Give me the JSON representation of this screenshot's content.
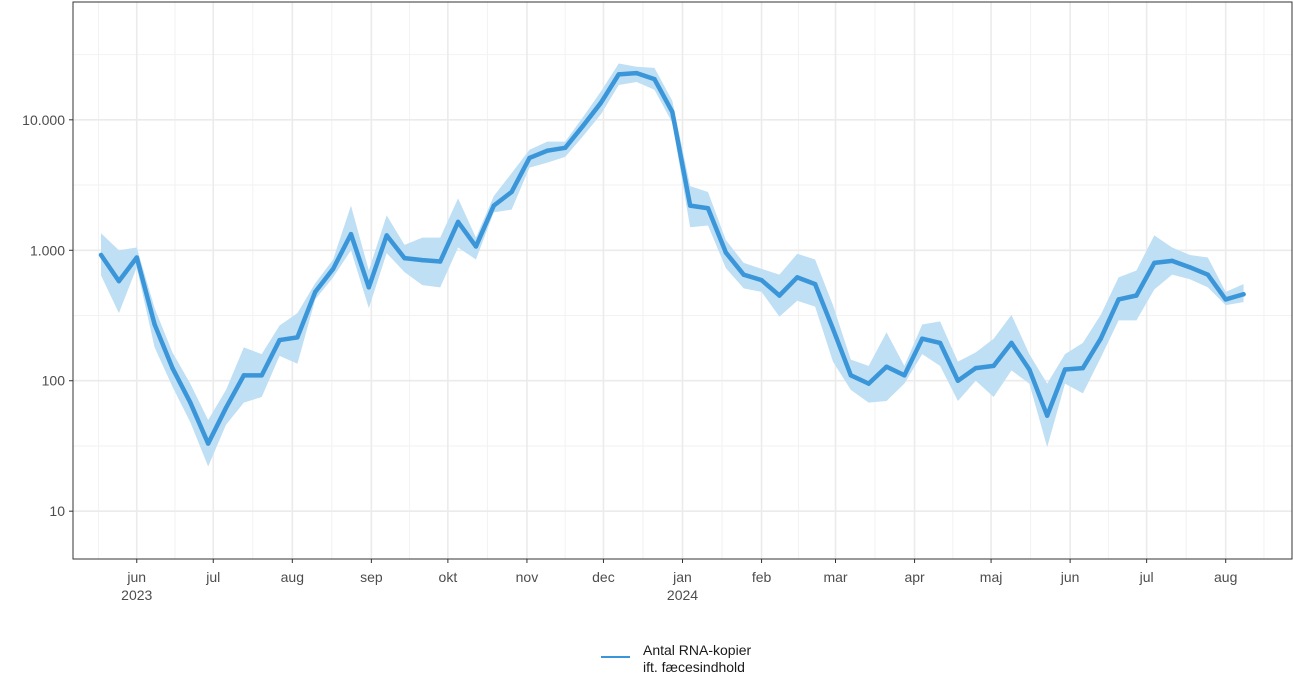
{
  "chart_data": {
    "type": "line",
    "y_scale": "log",
    "ylim": [
      4.3,
      80000
    ],
    "xlim": [
      "2023-05-07",
      "2024-08-27"
    ],
    "grid": true,
    "legend_position": "bottom",
    "y_ticks": [
      {
        "value": 10,
        "label": "10"
      },
      {
        "value": 100,
        "label": "100"
      },
      {
        "value": 1000,
        "label": "1.000"
      },
      {
        "value": 10000,
        "label": "10.000"
      }
    ],
    "x_ticks": [
      {
        "date": "2023-06-01",
        "label": "jun",
        "year": "2023"
      },
      {
        "date": "2023-07-01",
        "label": "jul",
        "year": ""
      },
      {
        "date": "2023-08-01",
        "label": "aug",
        "year": ""
      },
      {
        "date": "2023-09-01",
        "label": "sep",
        "year": ""
      },
      {
        "date": "2023-10-01",
        "label": "okt",
        "year": ""
      },
      {
        "date": "2023-11-01",
        "label": "nov",
        "year": ""
      },
      {
        "date": "2023-12-01",
        "label": "dec",
        "year": ""
      },
      {
        "date": "2024-01-01",
        "label": "jan",
        "year": "2024"
      },
      {
        "date": "2024-02-01",
        "label": "feb",
        "year": ""
      },
      {
        "date": "2024-03-01",
        "label": "mar",
        "year": ""
      },
      {
        "date": "2024-04-01",
        "label": "apr",
        "year": ""
      },
      {
        "date": "2024-05-01",
        "label": "maj",
        "year": ""
      },
      {
        "date": "2024-06-01",
        "label": "jun",
        "year": ""
      },
      {
        "date": "2024-07-01",
        "label": "jul",
        "year": ""
      },
      {
        "date": "2024-08-01",
        "label": "aug",
        "year": ""
      }
    ],
    "legend": {
      "line1": "Antal RNA-kopier",
      "line2": "ift. fæcesindhold"
    },
    "series": [
      {
        "name": "Antal RNA-kopier ift. fæcesindhold",
        "color": "#3a96d8",
        "band_color": "#bfdff4",
        "points": [
          {
            "x": "2023-05-18",
            "y": 920,
            "lo": 640,
            "hi": 1350
          },
          {
            "x": "2023-05-25",
            "y": 580,
            "lo": 330,
            "hi": 1000
          },
          {
            "x": "2023-06-01",
            "y": 880,
            "lo": 740,
            "hi": 1050
          },
          {
            "x": "2023-06-08",
            "y": 270,
            "lo": 180,
            "hi": 360
          },
          {
            "x": "2023-06-15",
            "y": 125,
            "lo": 90,
            "hi": 165
          },
          {
            "x": "2023-06-22",
            "y": 68,
            "lo": 48,
            "hi": 95
          },
          {
            "x": "2023-06-29",
            "y": 33,
            "lo": 22,
            "hi": 50
          },
          {
            "x": "2023-07-06",
            "y": 62,
            "lo": 46,
            "hi": 85
          },
          {
            "x": "2023-07-13",
            "y": 110,
            "lo": 68,
            "hi": 180
          },
          {
            "x": "2023-07-20",
            "y": 110,
            "lo": 75,
            "hi": 160
          },
          {
            "x": "2023-07-27",
            "y": 205,
            "lo": 155,
            "hi": 265
          },
          {
            "x": "2023-08-03",
            "y": 215,
            "lo": 135,
            "hi": 330
          },
          {
            "x": "2023-08-10",
            "y": 480,
            "lo": 420,
            "hi": 560
          },
          {
            "x": "2023-08-17",
            "y": 720,
            "lo": 620,
            "hi": 850
          },
          {
            "x": "2023-08-24",
            "y": 1330,
            "lo": 1000,
            "hi": 2200
          },
          {
            "x": "2023-08-31",
            "y": 520,
            "lo": 360,
            "hi": 700
          },
          {
            "x": "2023-09-07",
            "y": 1300,
            "lo": 950,
            "hi": 1850
          },
          {
            "x": "2023-09-14",
            "y": 870,
            "lo": 680,
            "hi": 1100
          },
          {
            "x": "2023-09-21",
            "y": 840,
            "lo": 540,
            "hi": 1250
          },
          {
            "x": "2023-09-28",
            "y": 820,
            "lo": 520,
            "hi": 1250
          },
          {
            "x": "2023-10-05",
            "y": 1650,
            "lo": 1050,
            "hi": 2500
          },
          {
            "x": "2023-10-12",
            "y": 1070,
            "lo": 850,
            "hi": 1250
          },
          {
            "x": "2023-10-19",
            "y": 2200,
            "lo": 1950,
            "hi": 2600
          },
          {
            "x": "2023-10-26",
            "y": 2800,
            "lo": 2050,
            "hi": 3900
          },
          {
            "x": "2023-11-02",
            "y": 5100,
            "lo": 4300,
            "hi": 5900
          },
          {
            "x": "2023-11-09",
            "y": 5800,
            "lo": 4700,
            "hi": 6800
          },
          {
            "x": "2023-11-16",
            "y": 6100,
            "lo": 5200,
            "hi": 6800
          },
          {
            "x": "2023-11-23",
            "y": 9000,
            "lo": 7500,
            "hi": 10500
          },
          {
            "x": "2023-11-30",
            "y": 13500,
            "lo": 11000,
            "hi": 16500
          },
          {
            "x": "2023-12-07",
            "y": 22300,
            "lo": 18500,
            "hi": 27000
          },
          {
            "x": "2023-12-14",
            "y": 22800,
            "lo": 19500,
            "hi": 25500
          },
          {
            "x": "2023-12-21",
            "y": 20500,
            "lo": 17000,
            "hi": 25000
          },
          {
            "x": "2023-12-28",
            "y": 11500,
            "lo": 9500,
            "hi": 14000
          },
          {
            "x": "2024-01-04",
            "y": 2200,
            "lo": 1500,
            "hi": 3100
          },
          {
            "x": "2024-01-11",
            "y": 2100,
            "lo": 1550,
            "hi": 2800
          },
          {
            "x": "2024-01-18",
            "y": 960,
            "lo": 730,
            "hi": 1200
          },
          {
            "x": "2024-01-25",
            "y": 650,
            "lo": 510,
            "hi": 800
          },
          {
            "x": "2024-02-01",
            "y": 590,
            "lo": 480,
            "hi": 720
          },
          {
            "x": "2024-02-08",
            "y": 450,
            "lo": 310,
            "hi": 650
          },
          {
            "x": "2024-02-15",
            "y": 620,
            "lo": 410,
            "hi": 940
          },
          {
            "x": "2024-02-22",
            "y": 550,
            "lo": 370,
            "hi": 850
          },
          {
            "x": "2024-02-29",
            "y": 250,
            "lo": 140,
            "hi": 380
          },
          {
            "x": "2024-03-07",
            "y": 110,
            "lo": 85,
            "hi": 145
          },
          {
            "x": "2024-03-14",
            "y": 95,
            "lo": 68,
            "hi": 130
          },
          {
            "x": "2024-03-21",
            "y": 128,
            "lo": 70,
            "hi": 235
          },
          {
            "x": "2024-03-28",
            "y": 110,
            "lo": 95,
            "hi": 130
          },
          {
            "x": "2024-04-04",
            "y": 210,
            "lo": 160,
            "hi": 270
          },
          {
            "x": "2024-04-11",
            "y": 195,
            "lo": 130,
            "hi": 285
          },
          {
            "x": "2024-04-18",
            "y": 100,
            "lo": 70,
            "hi": 140
          },
          {
            "x": "2024-04-25",
            "y": 125,
            "lo": 100,
            "hi": 165
          },
          {
            "x": "2024-05-02",
            "y": 130,
            "lo": 75,
            "hi": 210
          },
          {
            "x": "2024-05-09",
            "y": 195,
            "lo": 120,
            "hi": 320
          },
          {
            "x": "2024-05-16",
            "y": 122,
            "lo": 95,
            "hi": 160
          },
          {
            "x": "2024-05-23",
            "y": 54,
            "lo": 31,
            "hi": 95
          },
          {
            "x": "2024-05-30",
            "y": 122,
            "lo": 95,
            "hi": 160
          },
          {
            "x": "2024-06-06",
            "y": 125,
            "lo": 80,
            "hi": 195
          },
          {
            "x": "2024-06-13",
            "y": 210,
            "lo": 150,
            "hi": 320
          },
          {
            "x": "2024-06-20",
            "y": 420,
            "lo": 290,
            "hi": 620
          },
          {
            "x": "2024-06-27",
            "y": 450,
            "lo": 290,
            "hi": 700
          },
          {
            "x": "2024-07-04",
            "y": 800,
            "lo": 500,
            "hi": 1300
          },
          {
            "x": "2024-07-11",
            "y": 830,
            "lo": 650,
            "hi": 1050
          },
          {
            "x": "2024-07-18",
            "y": 740,
            "lo": 600,
            "hi": 920
          },
          {
            "x": "2024-07-25",
            "y": 650,
            "lo": 520,
            "hi": 880
          },
          {
            "x": "2024-08-01",
            "y": 420,
            "lo": 380,
            "hi": 480
          },
          {
            "x": "2024-08-08",
            "y": 460,
            "lo": 400,
            "hi": 550
          }
        ]
      }
    ]
  }
}
